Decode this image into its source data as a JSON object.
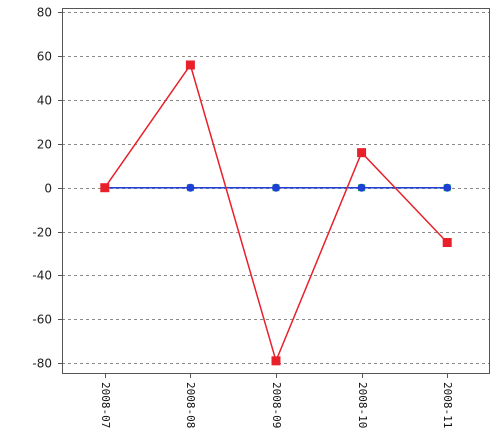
{
  "chart_data": {
    "type": "line",
    "x": [
      "2008-07",
      "2008-08",
      "2008-09",
      "2008-10",
      "2008-11"
    ],
    "y_ticks": [
      80,
      60,
      40,
      20,
      0,
      -20,
      -40,
      -60,
      -80
    ],
    "ylim": [
      -85,
      82
    ],
    "grid": true,
    "legend": "none",
    "series": [
      {
        "color": "#e8202a",
        "marker": "square",
        "values": [
          0,
          56,
          -79,
          16,
          -25
        ]
      },
      {
        "color": "#1f3fd6",
        "marker": "circle",
        "values": [
          0,
          0,
          0,
          0,
          0
        ]
      },
      {
        "color": "#22d43a",
        "marker": "square",
        "values": [
          0,
          0,
          0,
          0,
          0
        ]
      }
    ]
  }
}
